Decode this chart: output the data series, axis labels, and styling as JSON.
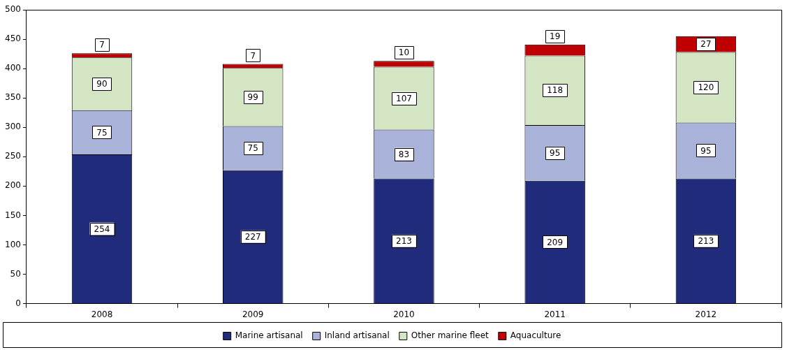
{
  "chart_data": {
    "type": "bar",
    "stacked": true,
    "categories": [
      "2008",
      "2009",
      "2010",
      "2011",
      "2012"
    ],
    "series": [
      {
        "name": "Marine artisanal",
        "color": "#212b7b",
        "values": [
          254,
          227,
          213,
          209,
          213
        ]
      },
      {
        "name": "Inland artisanal",
        "color": "#a9b2d8",
        "values": [
          75,
          75,
          83,
          95,
          95
        ]
      },
      {
        "name": "Other marine fleet",
        "color": "#d4e5c4",
        "values": [
          90,
          99,
          107,
          118,
          120
        ]
      },
      {
        "name": "Aquaculture",
        "color": "#c00000",
        "values": [
          7,
          7,
          10,
          19,
          27
        ]
      }
    ],
    "ylim": [
      0,
      500
    ],
    "yticks": [
      0,
      50,
      100,
      150,
      200,
      250,
      300,
      350,
      400,
      450,
      500
    ],
    "grid": false,
    "legend": "bottom",
    "data_labels": true
  }
}
